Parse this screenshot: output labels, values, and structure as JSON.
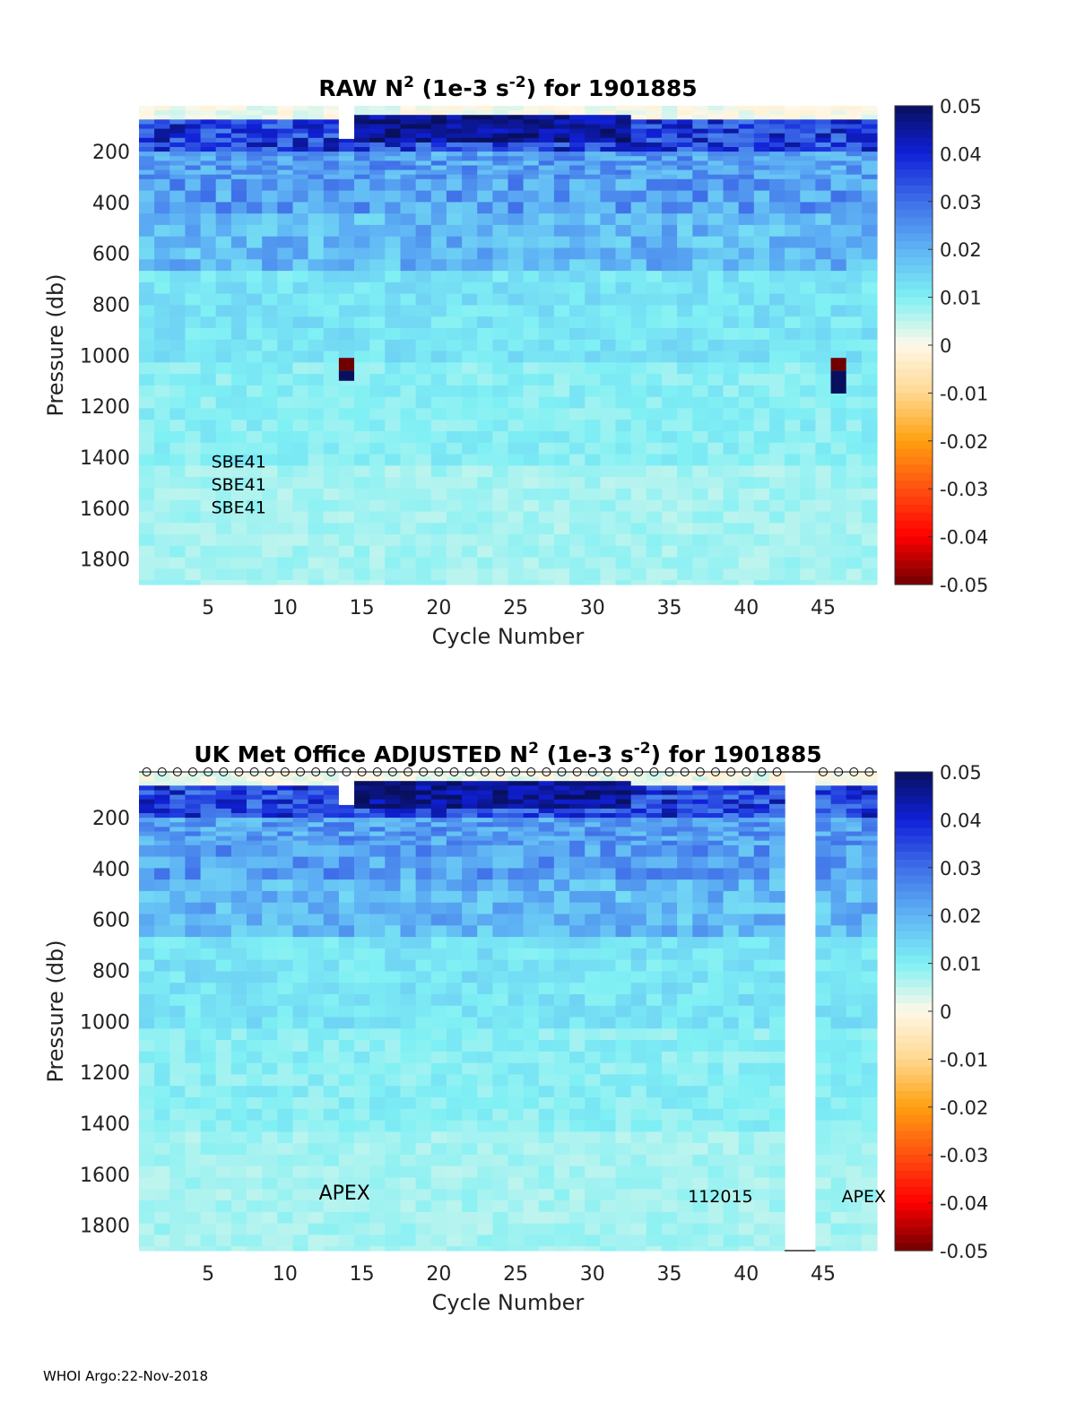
{
  "footer": "WHOI Argo:22-Nov-2018",
  "colorbar": {
    "ticks": [
      0.05,
      0.04,
      0.03,
      0.02,
      0.01,
      0,
      -0.01,
      -0.02,
      -0.03,
      -0.04,
      -0.05
    ],
    "tick_labels": [
      "0.05",
      "0.04",
      "0.03",
      "0.02",
      "0.01",
      "0",
      "-0.01",
      "-0.02",
      "-0.03",
      "-0.04",
      "-0.05"
    ],
    "colors_top_to_bottom": [
      "#08105e",
      "#1020d8",
      "#3f6fe8",
      "#5fb4f4",
      "#7ff0f4",
      "#fff8e8",
      "#ffd890",
      "#ffa010",
      "#ff5010",
      "#ff0000",
      "#700000"
    ]
  },
  "chart_data": [
    {
      "type": "heatmap",
      "title_parts": [
        "RAW N",
        "2",
        " (1e-3 s",
        "-2",
        ") for 1901885"
      ],
      "xlabel": "Cycle Number",
      "ylabel": "Pressure (db)",
      "x_ticks": [
        5,
        10,
        15,
        20,
        25,
        30,
        35,
        40,
        45
      ],
      "y_ticks": [
        200,
        400,
        600,
        800,
        1000,
        1200,
        1400,
        1600,
        1800
      ],
      "xlim": [
        1,
        49
      ],
      "ylim": [
        1900,
        20
      ],
      "clim": [
        -0.05,
        0.05
      ],
      "cycles": 48,
      "grid": false,
      "annotations": [
        {
          "text": "SBE41",
          "x": 5,
          "y": 1440
        },
        {
          "text": "SBE41",
          "x": 5,
          "y": 1530
        },
        {
          "text": "SBE41",
          "x": 5,
          "y": 1620
        }
      ],
      "gap_cycles": [],
      "anomalies": [
        {
          "cycle": 14,
          "p_top": 1010,
          "p_bottom": 1060,
          "value": -0.05
        },
        {
          "cycle": 14,
          "p_top": 1060,
          "p_bottom": 1100,
          "value": 0.05
        },
        {
          "cycle": 46,
          "p_top": 1010,
          "p_bottom": 1060,
          "value": -0.05
        },
        {
          "cycle": 46,
          "p_top": 1060,
          "p_bottom": 1150,
          "value": 0.05
        }
      ],
      "blank_cells": [
        {
          "cycle": 14,
          "p_top": 20,
          "p_bottom": 150
        }
      ],
      "surface_markers": false
    },
    {
      "type": "heatmap",
      "title_parts": [
        "UK Met Office  ADJUSTED N",
        "2",
        " (1e-3 s",
        "-2",
        ") for 1901885"
      ],
      "xlabel": "Cycle Number",
      "ylabel": "Pressure (db)",
      "x_ticks": [
        5,
        10,
        15,
        20,
        25,
        30,
        35,
        40,
        45
      ],
      "y_ticks": [
        200,
        400,
        600,
        800,
        1000,
        1200,
        1400,
        1600,
        1800
      ],
      "xlim": [
        1,
        49
      ],
      "ylim": [
        1900,
        20
      ],
      "clim": [
        -0.05,
        0.05
      ],
      "cycles": 48,
      "grid": false,
      "annotations": [
        {
          "text": "APEX",
          "x": 12,
          "y": 1700
        },
        {
          "text": "112015",
          "x": 36,
          "y": 1710
        },
        {
          "text": "APEX",
          "x": 46,
          "y": 1710
        }
      ],
      "gap_cycles": [
        43,
        44
      ],
      "anomalies": [],
      "blank_cells": [
        {
          "cycle": 14,
          "p_top": 20,
          "p_bottom": 150
        }
      ],
      "surface_markers": true
    }
  ]
}
